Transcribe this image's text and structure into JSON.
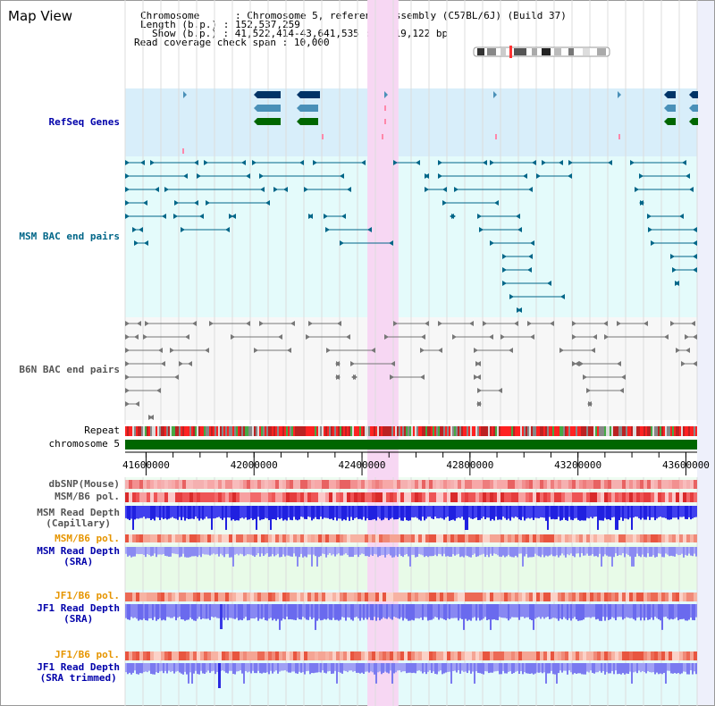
{
  "page": {
    "title": "Map View"
  },
  "info": {
    "chromosome_key": "Chromosome",
    "chromosome_val": "Chromosome 5, reference assembly (C57BL/6J) (Build 37)",
    "length_key": "Length (b.p.)",
    "length_val": "152,537,259",
    "show_key": "Show (b.p.)",
    "show_val": "41,522,414-43,641,535 : 2,119,122 bp",
    "coverage_key": "Read coverage check span",
    "coverage_val": "10,000"
  },
  "tracks": {
    "refseq": "RefSeq Genes",
    "msm_bac": "MSM BAC end pairs",
    "b6n_bac": "B6N BAC end pairs",
    "repeat": "Repeat",
    "chromosome": "chromosome 5",
    "dbsnp": "dbSNP(Mouse)",
    "msm_b6_pol": "MSM/B6 pol.",
    "msm_depth_cap_1": "MSM Read Depth",
    "msm_depth_cap_2": "(Capillary)",
    "msm_b6_pol_2": "MSM/B6 pol.",
    "msm_depth_sra_1": "MSM Read Depth",
    "msm_depth_sra_2": "(SRA)",
    "jf1_b6_pol": "JF1/B6 pol.",
    "jf1_depth_sra_1": "JF1 Read Depth",
    "jf1_depth_sra_2": "(SRA)",
    "jf1_b6_pol_2": "JF1/B6 pol.",
    "jf1_depth_trim_1": "JF1 Read Depth",
    "jf1_depth_trim_2": "(SRA trimmed)"
  },
  "axis": {
    "ticks": [
      "41600000",
      "42000000",
      "42400000",
      "42800000",
      "43200000",
      "43600000"
    ]
  },
  "range": {
    "start": 41522414,
    "end": 43641535
  },
  "highlight": {
    "start": 42420000,
    "end": 42535000
  },
  "colors": {
    "refseq_bg": "#d8eefa",
    "bac_bg": "#e4fbfb",
    "highlight": "#f7d7f3",
    "gene_dark": "#003366",
    "gene_mid": "#4a90b8",
    "gene_green": "#006600",
    "msm_line": "#006688",
    "b6n_line": "#777777",
    "chromosome_bar": "#006600",
    "depth_dark": "#1f1fe0",
    "depth_light": "#7878f0"
  }
}
